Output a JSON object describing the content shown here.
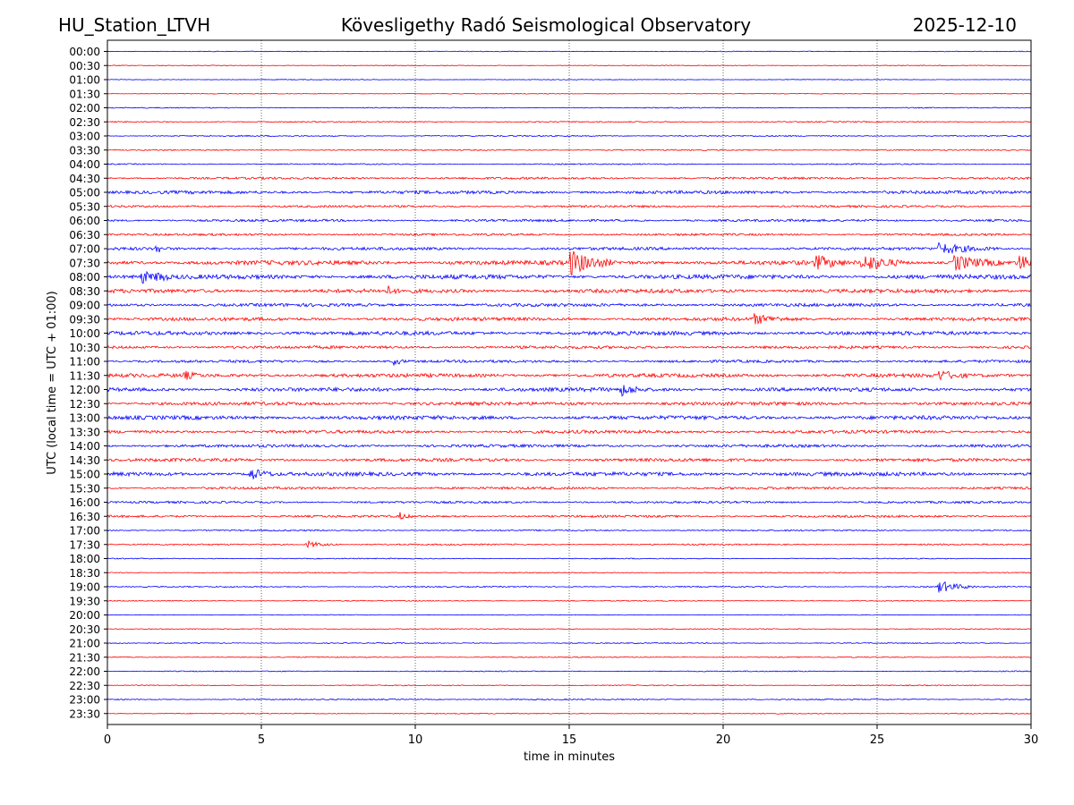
{
  "header": {
    "station": "HU_Station_LTVH",
    "observatory": "Kövesligethy Radó Seismological Observatory",
    "date": "2025-12-10"
  },
  "colors": {
    "even_row": "#0000ff",
    "odd_row": "#ff0000",
    "grid": "#000000"
  },
  "chart_data": {
    "type": "line",
    "title": "Kövesligethy Radó Seismological Observatory",
    "xlabel": "time in minutes",
    "ylabel": "UTC (local time = UTC + 01:00)",
    "xlim": [
      0,
      30
    ],
    "xticks": [
      0,
      5,
      10,
      15,
      20,
      25,
      30
    ],
    "vertical_gridlines_at": [
      5,
      10,
      15,
      20,
      25
    ],
    "row_labels": [
      "00:00",
      "00:30",
      "01:00",
      "01:30",
      "02:00",
      "02:30",
      "03:00",
      "03:30",
      "04:00",
      "04:30",
      "05:00",
      "05:30",
      "06:00",
      "06:30",
      "07:00",
      "07:30",
      "08:00",
      "08:30",
      "09:00",
      "09:30",
      "10:00",
      "10:30",
      "11:00",
      "11:30",
      "12:00",
      "12:30",
      "13:00",
      "13:30",
      "14:00",
      "14:30",
      "15:00",
      "15:30",
      "16:00",
      "16:30",
      "17:00",
      "17:30",
      "18:00",
      "18:30",
      "19:00",
      "19:30",
      "20:00",
      "20:30",
      "21:00",
      "21:30",
      "22:00",
      "22:30",
      "23:00",
      "23:30"
    ],
    "noise_level": [
      0.3,
      0.3,
      0.3,
      0.3,
      0.4,
      0.5,
      0.5,
      0.5,
      0.5,
      0.9,
      1.3,
      0.9,
      1.0,
      0.9,
      1.2,
      1.8,
      1.8,
      1.6,
      1.3,
      1.4,
      1.6,
      1.2,
      1.1,
      1.5,
      1.6,
      1.4,
      1.6,
      1.3,
      1.2,
      1.3,
      1.6,
      1.0,
      0.9,
      0.9,
      0.6,
      0.6,
      0.4,
      0.4,
      0.5,
      0.4,
      0.3,
      0.4,
      0.4,
      0.4,
      0.4,
      0.4,
      0.5,
      0.4
    ],
    "events": [
      {
        "row": 14,
        "minute": 1.6,
        "amplitude": 12,
        "duration": 0.15
      },
      {
        "row": 16,
        "minute": 1.1,
        "amplitude": 8,
        "duration": 0.5
      },
      {
        "row": 16,
        "minute": 1.6,
        "amplitude": 9,
        "duration": 0.4
      },
      {
        "row": 15,
        "minute": 15.0,
        "amplitude": 14,
        "duration": 1.4
      },
      {
        "row": 15,
        "minute": 24.5,
        "amplitude": 10,
        "duration": 1.5
      },
      {
        "row": 15,
        "minute": 27.5,
        "amplitude": 9,
        "duration": 1.5
      },
      {
        "row": 15,
        "minute": 29.6,
        "amplitude": 10,
        "duration": 0.6
      },
      {
        "row": 15,
        "minute": 23.0,
        "amplitude": 8,
        "duration": 1.0
      },
      {
        "row": 14,
        "minute": 27.0,
        "amplitude": 6,
        "duration": 2.0
      },
      {
        "row": 30,
        "minute": 4.6,
        "amplitude": 8,
        "duration": 0.8
      },
      {
        "row": 24,
        "minute": 16.7,
        "amplitude": 6,
        "duration": 0.8
      },
      {
        "row": 23,
        "minute": 27.0,
        "amplitude": 5,
        "duration": 1.0
      },
      {
        "row": 38,
        "minute": 27.0,
        "amplitude": 7,
        "duration": 1.2
      },
      {
        "row": 33,
        "minute": 9.5,
        "amplitude": 4,
        "duration": 0.4
      },
      {
        "row": 35,
        "minute": 6.5,
        "amplitude": 4,
        "duration": 1.0
      },
      {
        "row": 19,
        "minute": 21.0,
        "amplitude": 5,
        "duration": 1.2
      },
      {
        "row": 17,
        "minute": 9.1,
        "amplitude": 5,
        "duration": 0.3
      },
      {
        "row": 22,
        "minute": 9.3,
        "amplitude": 4,
        "duration": 0.5
      },
      {
        "row": 23,
        "minute": 2.5,
        "amplitude": 4,
        "duration": 0.6
      }
    ]
  }
}
